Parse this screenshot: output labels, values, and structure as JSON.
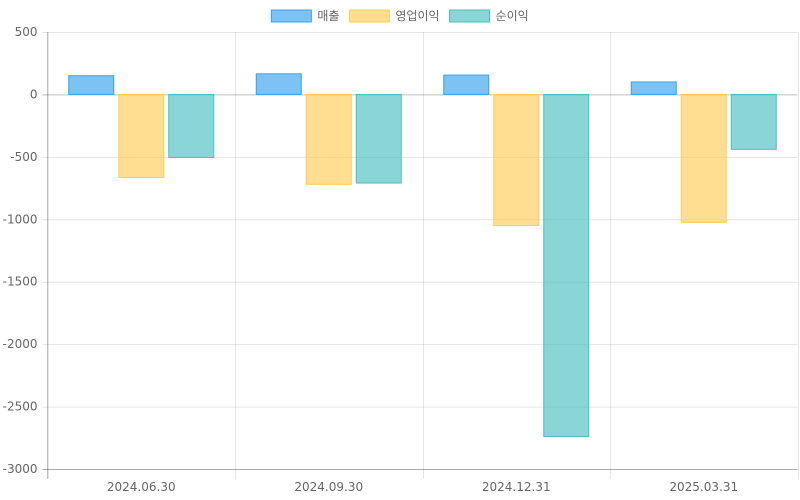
{
  "chart_data": {
    "type": "bar",
    "categories": [
      "2024.06.30",
      "2024.09.30",
      "2024.12.31",
      "2025.03.31"
    ],
    "series": [
      {
        "name": "매출",
        "values": [
          150,
          165,
          155,
          100
        ],
        "color": "#36a2eb"
      },
      {
        "name": "영업이익",
        "values": [
          -665,
          -720,
          -1050,
          -1025
        ],
        "color": "#ffcd56"
      },
      {
        "name": "순이익",
        "values": [
          -505,
          -710,
          -2740,
          -440
        ],
        "color": "#4bc0c0"
      }
    ],
    "ylim": [
      -3000,
      500
    ],
    "yticks": [
      500,
      0,
      -500,
      -1000,
      -1500,
      -2000,
      -2500,
      -3000
    ],
    "ytick_labels": [
      "500",
      "0",
      "-500",
      "-1000",
      "-1500",
      "-2000",
      "-2500",
      "-3000"
    ],
    "grid": true,
    "legend_position": "top"
  }
}
